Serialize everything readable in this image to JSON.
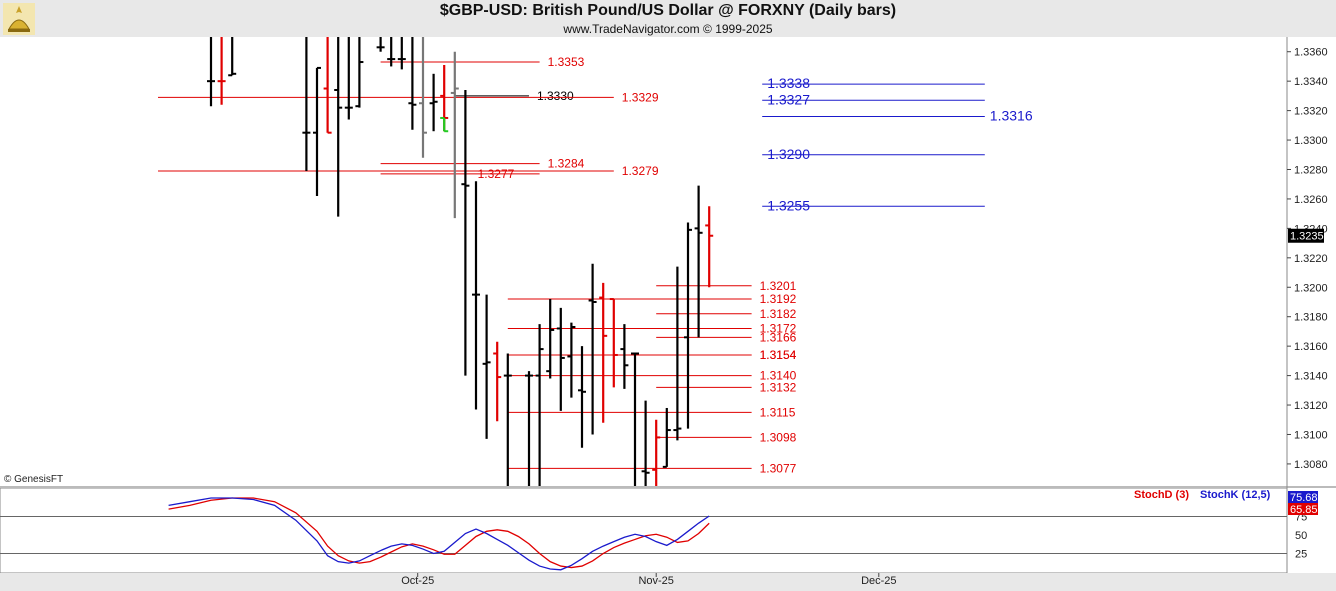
{
  "header": {
    "title": "$GBP-USD:  British Pound/US Dollar @ FORXNY  (Daily bars)",
    "subtitle": "www.TradeNavigator.com © 1999-2025"
  },
  "copyright": "© GenesisFT",
  "colors": {
    "up": "#000000",
    "down": "#e00000",
    "blue": "#1a1acc",
    "gray": "#777777",
    "green": "#22cc22"
  },
  "chart_data": [
    {
      "type": "bar",
      "name": "price",
      "ylim": [
        1.3065,
        1.337
      ],
      "y_ticks": [
        "1.3360",
        "1.3340",
        "1.3320",
        "1.3300",
        "1.3280",
        "1.3260",
        "1.3240",
        "1.3220",
        "1.3200",
        "1.3180",
        "1.3160",
        "1.3140",
        "1.3120",
        "1.3100",
        "1.3080"
      ],
      "x_labels": [
        {
          "label": "Oct-25",
          "bar": 19.5
        },
        {
          "label": "Nov-25",
          "bar": 42
        },
        {
          "label": "Dec-25",
          "bar": 63
        }
      ],
      "last_price": "1.3235",
      "bars": [
        {
          "i": 0,
          "o": 1.334,
          "h": 1.339,
          "l": 1.3323,
          "c": 1.334,
          "col": "up"
        },
        {
          "i": 1,
          "o": 1.334,
          "h": 1.339,
          "l": 1.3324,
          "c": 1.334,
          "col": "down"
        },
        {
          "i": 2,
          "o": 1.3344,
          "h": 1.339,
          "l": 1.3344,
          "c": 1.3345,
          "col": "up"
        },
        {
          "i": 9,
          "o": 1.3305,
          "h": 1.3375,
          "l": 1.3279,
          "c": 1.3305,
          "col": "up"
        },
        {
          "i": 10,
          "o": 1.3305,
          "h": 1.3349,
          "l": 1.3262,
          "c": 1.3349,
          "col": "up"
        },
        {
          "i": 11,
          "o": 1.3335,
          "h": 1.3375,
          "l": 1.3305,
          "c": 1.3305,
          "col": "down"
        },
        {
          "i": 12,
          "o": 1.3334,
          "h": 1.3375,
          "l": 1.3248,
          "c": 1.3322,
          "col": "up"
        },
        {
          "i": 13,
          "o": 1.3322,
          "h": 1.337,
          "l": 1.3314,
          "c": 1.3322,
          "col": "up"
        },
        {
          "i": 14,
          "o": 1.3323,
          "h": 1.337,
          "l": 1.3322,
          "c": 1.3353,
          "col": "up"
        },
        {
          "i": 16,
          "o": 1.3363,
          "h": 1.3375,
          "l": 1.336,
          "c": 1.3363,
          "col": "up"
        },
        {
          "i": 17,
          "o": 1.3355,
          "h": 1.337,
          "l": 1.335,
          "c": 1.3355,
          "col": "up"
        },
        {
          "i": 18,
          "o": 1.3355,
          "h": 1.337,
          "l": 1.3348,
          "c": 1.3355,
          "col": "up"
        },
        {
          "i": 19,
          "o": 1.3325,
          "h": 1.337,
          "l": 1.3307,
          "c": 1.3324,
          "col": "up"
        },
        {
          "i": 20,
          "o": 1.3325,
          "h": 1.337,
          "l": 1.3288,
          "c": 1.3305,
          "col": "gray"
        },
        {
          "i": 21,
          "o": 1.3325,
          "h": 1.3345,
          "l": 1.3306,
          "c": 1.3326,
          "col": "up"
        },
        {
          "i": 22,
          "o": 1.333,
          "h": 1.3351,
          "l": 1.3306,
          "c": 1.3315,
          "col": "down"
        },
        {
          "i": 22,
          "o": 1.3315,
          "h": 1.3315,
          "l": 1.3306,
          "c": 1.3306,
          "col": "green"
        },
        {
          "i": 23,
          "o": 1.3332,
          "h": 1.336,
          "l": 1.3247,
          "c": 1.3335,
          "col": "gray"
        },
        {
          "i": 24,
          "o": 1.327,
          "h": 1.3334,
          "l": 1.314,
          "c": 1.3269,
          "col": "up"
        },
        {
          "i": 25,
          "o": 1.3195,
          "h": 1.3272,
          "l": 1.3117,
          "c": 1.3195,
          "col": "up"
        },
        {
          "i": 26,
          "o": 1.3148,
          "h": 1.3195,
          "l": 1.3097,
          "c": 1.3149,
          "col": "up"
        },
        {
          "i": 27,
          "o": 1.3155,
          "h": 1.3163,
          "l": 1.3109,
          "c": 1.3139,
          "col": "down"
        },
        {
          "i": 28,
          "o": 1.314,
          "h": 1.3155,
          "l": 1.3065,
          "c": 1.314,
          "col": "up"
        },
        {
          "i": 30,
          "o": 1.314,
          "h": 1.3143,
          "l": 1.3065,
          "c": 1.314,
          "col": "up"
        },
        {
          "i": 31,
          "o": 1.314,
          "h": 1.3175,
          "l": 1.3065,
          "c": 1.3158,
          "col": "up"
        },
        {
          "i": 32,
          "o": 1.3143,
          "h": 1.3192,
          "l": 1.3138,
          "c": 1.3171,
          "col": "up"
        },
        {
          "i": 33,
          "o": 1.3172,
          "h": 1.3186,
          "l": 1.3116,
          "c": 1.3152,
          "col": "up"
        },
        {
          "i": 34,
          "o": 1.3153,
          "h": 1.3176,
          "l": 1.3125,
          "c": 1.3173,
          "col": "up"
        },
        {
          "i": 35,
          "o": 1.313,
          "h": 1.316,
          "l": 1.3091,
          "c": 1.3129,
          "col": "up"
        },
        {
          "i": 36,
          "o": 1.3191,
          "h": 1.3216,
          "l": 1.31,
          "c": 1.319,
          "col": "up"
        },
        {
          "i": 37,
          "o": 1.3193,
          "h": 1.3203,
          "l": 1.3108,
          "c": 1.3167,
          "col": "down"
        },
        {
          "i": 38,
          "o": 1.3192,
          "h": 1.3192,
          "l": 1.3132,
          "c": 1.3154,
          "col": "down"
        },
        {
          "i": 39,
          "o": 1.3158,
          "h": 1.3175,
          "l": 1.3131,
          "c": 1.3147,
          "col": "up"
        },
        {
          "i": 40,
          "o": 1.3155,
          "h": 1.3155,
          "l": 1.3065,
          "c": 1.3155,
          "col": "up"
        },
        {
          "i": 41,
          "o": 1.3075,
          "h": 1.3123,
          "l": 1.3065,
          "c": 1.3074,
          "col": "up"
        },
        {
          "i": 42,
          "o": 1.3076,
          "h": 1.311,
          "l": 1.3065,
          "c": 1.3098,
          "col": "down"
        },
        {
          "i": 43,
          "o": 1.3078,
          "h": 1.3118,
          "l": 1.3078,
          "c": 1.3103,
          "col": "up"
        },
        {
          "i": 44,
          "o": 1.3103,
          "h": 1.3214,
          "l": 1.3096,
          "c": 1.3104,
          "col": "up"
        },
        {
          "i": 45,
          "o": 1.3166,
          "h": 1.3244,
          "l": 1.3104,
          "c": 1.3239,
          "col": "up"
        },
        {
          "i": 46,
          "o": 1.324,
          "h": 1.3269,
          "l": 1.3166,
          "c": 1.3237,
          "col": "up"
        },
        {
          "i": 47,
          "o": 1.3242,
          "h": 1.3255,
          "l": 1.32,
          "c": 1.3235,
          "col": "down"
        }
      ],
      "levels": [
        {
          "label": "1.3353",
          "value": 1.3353,
          "color": "red",
          "from": 16,
          "to": 31
        },
        {
          "label": "1.3338",
          "value": 1.3338,
          "color": "blue",
          "from": 52,
          "to": 73,
          "big": true
        },
        {
          "label": "1.3330",
          "value": 1.333,
          "color": "black",
          "from": 23,
          "to": 30,
          "x2": 1.333
        },
        {
          "label": "1.3329",
          "value": 1.3329,
          "color": "red",
          "from": -5,
          "to": 38
        },
        {
          "label": "1.3327",
          "value": 1.3327,
          "color": "blue",
          "from": 52,
          "to": 73,
          "big": true
        },
        {
          "label": "1.3316",
          "value": 1.3316,
          "color": "blue",
          "from": 52,
          "to": 73,
          "big": true,
          "right": true
        },
        {
          "label": "1.3290",
          "value": 1.329,
          "color": "blue",
          "from": 52,
          "to": 73,
          "big": true
        },
        {
          "label": "1.3284",
          "value": 1.3284,
          "color": "red",
          "from": 16,
          "to": 31
        },
        {
          "label": "1.3279",
          "value": 1.3279,
          "color": "red",
          "from": -5,
          "to": 38
        },
        {
          "label": "1.3277",
          "value": 1.3277,
          "color": "red",
          "from": 16,
          "to": 31,
          "left": true
        },
        {
          "label": "1.3255",
          "value": 1.3255,
          "color": "blue",
          "from": 52,
          "to": 73,
          "big": true
        },
        {
          "label": "1.3201",
          "value": 1.3201,
          "color": "red",
          "from": 42,
          "to": 51
        },
        {
          "label": "1.3192",
          "value": 1.3192,
          "color": "red",
          "from": 28,
          "to": 51
        },
        {
          "label": "1.3182",
          "value": 1.3182,
          "color": "red",
          "from": 42,
          "to": 51
        },
        {
          "label": "1.3172",
          "value": 1.3172,
          "color": "red",
          "from": 28,
          "to": 51
        },
        {
          "label": "1.3166",
          "value": 1.3166,
          "color": "red",
          "from": 42,
          "to": 51
        },
        {
          "label": "1.3154",
          "value": 1.3154,
          "color": "red",
          "from": 28,
          "to": 51
        },
        {
          "label": "1.3154",
          "value": 1.3154,
          "color": "red",
          "from": 42,
          "to": 51
        },
        {
          "label": "1.3140",
          "value": 1.314,
          "color": "red",
          "from": 28,
          "to": 51
        },
        {
          "label": "1.3132",
          "value": 1.3132,
          "color": "red",
          "from": 42,
          "to": 51
        },
        {
          "label": "1.3115",
          "value": 1.3115,
          "color": "red",
          "from": 28,
          "to": 51
        },
        {
          "label": "1.3098",
          "value": 1.3098,
          "color": "red",
          "from": 42,
          "to": 51
        },
        {
          "label": "1.3077",
          "value": 1.3077,
          "color": "red",
          "from": 28,
          "to": 51
        }
      ]
    },
    {
      "type": "line",
      "name": "stochastic",
      "ylim": [
        0,
        100
      ],
      "y_ticks": [
        "75",
        "50",
        "25"
      ],
      "legend": [
        "StochD (3)",
        "StochK (12,5)"
      ],
      "last_values": {
        "stochk": "75.68",
        "stochd": "65.85"
      },
      "series": [
        {
          "name": "StochD (3)",
          "color": "red",
          "values": [
            [
              -4,
              85
            ],
            [
              -2,
              90
            ],
            [
              0,
              97
            ],
            [
              2,
              100
            ],
            [
              4,
              100
            ],
            [
              6,
              95
            ],
            [
              8,
              80
            ],
            [
              10,
              55
            ],
            [
              11,
              35
            ],
            [
              12,
              22
            ],
            [
              13,
              15
            ],
            [
              14,
              12
            ],
            [
              15,
              14
            ],
            [
              16,
              20
            ],
            [
              17,
              27
            ],
            [
              18,
              34
            ],
            [
              19,
              38
            ],
            [
              20,
              35
            ],
            [
              21,
              30
            ],
            [
              22,
              24
            ],
            [
              23,
              24
            ],
            [
              24,
              36
            ],
            [
              25,
              48
            ],
            [
              26,
              55
            ],
            [
              27,
              57
            ],
            [
              28,
              55
            ],
            [
              29,
              48
            ],
            [
              30,
              38
            ],
            [
              31,
              25
            ],
            [
              32,
              14
            ],
            [
              33,
              8
            ],
            [
              34,
              6
            ],
            [
              35,
              8
            ],
            [
              36,
              15
            ],
            [
              37,
              25
            ],
            [
              38,
              33
            ],
            [
              39,
              39
            ],
            [
              40,
              44
            ],
            [
              41,
              49
            ],
            [
              42,
              51
            ],
            [
              43,
              47
            ],
            [
              44,
              40
            ],
            [
              45,
              42
            ],
            [
              46,
              52
            ],
            [
              47,
              65.85
            ]
          ]
        },
        {
          "name": "StochK (12,5)",
          "color": "blue",
          "values": [
            [
              -4,
              90
            ],
            [
              -2,
              95
            ],
            [
              0,
              100
            ],
            [
              2,
              100
            ],
            [
              4,
              98
            ],
            [
              6,
              90
            ],
            [
              8,
              70
            ],
            [
              10,
              42
            ],
            [
              11,
              22
            ],
            [
              12,
              14
            ],
            [
              13,
              12
            ],
            [
              14,
              15
            ],
            [
              15,
              22
            ],
            [
              16,
              29
            ],
            [
              17,
              35
            ],
            [
              18,
              38
            ],
            [
              19,
              36
            ],
            [
              20,
              31
            ],
            [
              21,
              25
            ],
            [
              22,
              28
            ],
            [
              23,
              40
            ],
            [
              24,
              52
            ],
            [
              25,
              58
            ],
            [
              26,
              52
            ],
            [
              27,
              44
            ],
            [
              28,
              36
            ],
            [
              29,
              26
            ],
            [
              30,
              16
            ],
            [
              31,
              8
            ],
            [
              32,
              4
            ],
            [
              33,
              3
            ],
            [
              34,
              9
            ],
            [
              35,
              18
            ],
            [
              36,
              28
            ],
            [
              37,
              35
            ],
            [
              38,
              41
            ],
            [
              39,
              47
            ],
            [
              40,
              51
            ],
            [
              41,
              48
            ],
            [
              42,
              41
            ],
            [
              43,
              36
            ],
            [
              44,
              44
            ],
            [
              45,
              55
            ],
            [
              46,
              66
            ],
            [
              47,
              75.68
            ]
          ]
        }
      ]
    }
  ]
}
